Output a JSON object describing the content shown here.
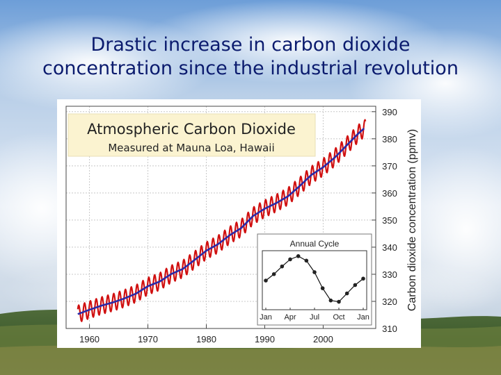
{
  "slide": {
    "title_line1": "Drastic increase in carbon dioxide",
    "title_line2": "concentration since the industrial revolution"
  },
  "colors": {
    "title": "#0b1b6e",
    "raw_line": "#d01010",
    "trend_line": "#2a2aa8",
    "title_box": "#fbf3d0",
    "grid": "#c8c8c8"
  },
  "chart_data": [
    {
      "type": "line",
      "title": "Atmospheric Carbon Dioxide",
      "subtitle": "Measured at Mauna Loa, Hawaii",
      "xlabel": "",
      "ylabel": "Carbon dioxide concentration (ppmv)",
      "xlim": [
        1956,
        2009
      ],
      "ylim": [
        310,
        392
      ],
      "x_ticks": [
        "1960",
        "1970",
        "1980",
        "1990",
        "2000"
      ],
      "y_ticks": [
        "310",
        "320",
        "330",
        "340",
        "350",
        "360",
        "370",
        "380",
        "390"
      ],
      "y_axis_position": "right",
      "grid": true,
      "series": [
        {
          "role": "monthly-raw",
          "color": "#d01010",
          "x": [
            1958,
            1960,
            1962,
            1964,
            1966,
            1968,
            1970,
            1972,
            1974,
            1976,
            1978,
            1980,
            1982,
            1984,
            1986,
            1988,
            1990,
            1992,
            1994,
            1996,
            1998,
            2000,
            2002,
            2004,
            2006,
            2007
          ],
          "y": [
            315.3,
            316.9,
            318.4,
            319.6,
            321.1,
            322.9,
            325.6,
            327.3,
            330.1,
            332.0,
            335.3,
            338.7,
            341.1,
            344.4,
            347.1,
            351.5,
            354.2,
            356.3,
            358.8,
            362.6,
            366.7,
            369.5,
            373.1,
            377.5,
            381.9,
            383.8
          ],
          "seasonal_amplitude": 3.2
        },
        {
          "role": "trend",
          "color": "#2a2aa8",
          "x": [
            1958,
            1960,
            1962,
            1964,
            1966,
            1968,
            1970,
            1972,
            1974,
            1976,
            1978,
            1980,
            1982,
            1984,
            1986,
            1988,
            1990,
            1992,
            1994,
            1996,
            1998,
            2000,
            2002,
            2004,
            2006,
            2007
          ],
          "y": [
            315.3,
            316.9,
            318.4,
            319.6,
            321.1,
            322.9,
            325.6,
            327.3,
            330.1,
            332.0,
            335.3,
            338.7,
            341.1,
            344.4,
            347.1,
            351.5,
            354.2,
            356.3,
            358.8,
            362.6,
            366.7,
            369.5,
            373.1,
            377.5,
            381.9,
            383.8
          ]
        }
      ]
    },
    {
      "type": "line",
      "title": "Annual Cycle",
      "xlabel": "",
      "ylabel": "",
      "x_ticks": [
        "Jan",
        "Apr",
        "Jul",
        "Oct",
        "Jan"
      ],
      "grid": false,
      "series": [
        {
          "x": [
            1,
            2,
            3,
            4,
            5,
            6,
            7,
            8,
            9,
            10,
            11,
            12,
            13
          ],
          "y": [
            0.0,
            1.0,
            2.2,
            3.3,
            3.8,
            3.1,
            1.3,
            -1.2,
            -3.1,
            -3.3,
            -2.0,
            -0.7,
            0.3
          ]
        }
      ]
    }
  ]
}
